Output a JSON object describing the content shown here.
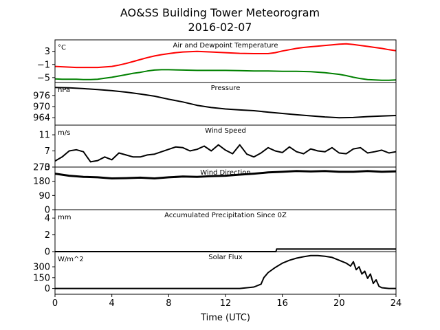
{
  "figure": {
    "title": "AO&SS Building Tower Meteorogram",
    "subtitle": "2016-02-07",
    "xlabel": "Time (UTC)",
    "xlim": [
      0,
      24
    ],
    "xticks": [
      0,
      4,
      8,
      12,
      16,
      20,
      24
    ]
  },
  "chart_data": [
    {
      "type": "line",
      "title": "Air and Dewpoint Temperature",
      "unit": "°C",
      "ylim": [
        -6.5,
        6.5
      ],
      "yticks": [
        3,
        -1,
        -5
      ],
      "ytick_labels": [
        "3",
        "−1",
        "−5"
      ],
      "series": [
        {
          "color": "#ff0000",
          "x": [
            0,
            0.5,
            1,
            1.5,
            2,
            3,
            4,
            4.5,
            5,
            5.5,
            6,
            6.5,
            7,
            7.5,
            8,
            8.5,
            9,
            10,
            11,
            12,
            13,
            14,
            15,
            15.5,
            16,
            16.5,
            17,
            17.5,
            18,
            18.5,
            19,
            19.5,
            20,
            20.5,
            21,
            21.5,
            22,
            22.5,
            23,
            23.5,
            24
          ],
          "values": [
            -1.6,
            -1.7,
            -1.8,
            -1.9,
            -1.9,
            -1.9,
            -1.6,
            -1.2,
            -0.7,
            -0.1,
            0.5,
            1.1,
            1.6,
            2.0,
            2.3,
            2.6,
            2.8,
            3.0,
            2.8,
            2.6,
            2.4,
            2.3,
            2.3,
            2.6,
            3.1,
            3.5,
            3.9,
            4.2,
            4.4,
            4.6,
            4.8,
            5.0,
            5.2,
            5.3,
            5.1,
            4.8,
            4.5,
            4.2,
            3.9,
            3.5,
            3.2
          ]
        },
        {
          "color": "#008000",
          "x": [
            0,
            0.5,
            1,
            1.5,
            2,
            2.5,
            3,
            3.5,
            4,
            4.5,
            5,
            5.5,
            6,
            6.5,
            7,
            7.5,
            8,
            9,
            10,
            11,
            12,
            13,
            14,
            15,
            16,
            17,
            18,
            19,
            20,
            20.5,
            21,
            21.5,
            22,
            22.5,
            23,
            23.5,
            24
          ],
          "values": [
            -5.4,
            -5.5,
            -5.5,
            -5.5,
            -5.6,
            -5.6,
            -5.5,
            -5.2,
            -4.9,
            -4.5,
            -4.1,
            -3.7,
            -3.4,
            -3.0,
            -2.7,
            -2.6,
            -2.6,
            -2.7,
            -2.8,
            -2.8,
            -2.8,
            -2.9,
            -3.0,
            -3.0,
            -3.1,
            -3.1,
            -3.2,
            -3.5,
            -4.0,
            -4.4,
            -4.9,
            -5.3,
            -5.6,
            -5.7,
            -5.8,
            -5.8,
            -5.7
          ]
        }
      ]
    },
    {
      "type": "line",
      "title": "Pressure",
      "unit": "hPa",
      "ylim": [
        960,
        983
      ],
      "yticks": [
        976,
        970,
        964
      ],
      "ytick_labels": [
        "976",
        "970",
        "964"
      ],
      "series": [
        {
          "color": "#000000",
          "x": [
            0,
            1,
            2,
            3,
            4,
            5,
            6,
            7,
            8,
            9,
            10,
            11,
            12,
            13,
            14,
            15,
            16,
            17,
            18,
            19,
            20,
            21,
            22,
            23,
            24
          ],
          "values": [
            980.3,
            980.1,
            979.7,
            979.2,
            978.6,
            977.8,
            976.8,
            975.6,
            974.0,
            972.5,
            970.7,
            969.5,
            968.7,
            968.2,
            967.8,
            967.0,
            966.3,
            965.6,
            965.0,
            964.4,
            964.0,
            964.1,
            964.6,
            964.9,
            965.2
          ]
        }
      ]
    },
    {
      "type": "line",
      "title": "Wind Speed",
      "unit": "m/s",
      "ylim": [
        3,
        13.4
      ],
      "yticks": [
        11,
        7,
        3
      ],
      "ytick_labels": [
        "11",
        "7",
        "3"
      ],
      "series": [
        {
          "color": "#000000",
          "x": [
            0,
            0.5,
            1,
            1.5,
            2,
            2.5,
            3,
            3.5,
            4,
            4.5,
            5,
            5.5,
            6,
            6.5,
            7,
            7.5,
            8,
            8.5,
            9,
            9.5,
            10,
            10.5,
            11,
            11.5,
            12,
            12.5,
            13,
            13.5,
            14,
            14.5,
            15,
            15.5,
            16,
            16.5,
            17,
            17.5,
            18,
            18.5,
            19,
            19.5,
            20,
            20.5,
            21,
            21.5,
            22,
            22.5,
            23,
            23.5,
            24
          ],
          "values": [
            4.5,
            5.5,
            7.0,
            7.3,
            6.8,
            4.3,
            4.6,
            5.5,
            4.8,
            6.5,
            6.0,
            5.5,
            5.5,
            6.0,
            6.2,
            6.8,
            7.4,
            8.0,
            7.8,
            7.0,
            7.4,
            8.2,
            7.0,
            8.5,
            7.2,
            6.3,
            8.5,
            6.2,
            5.5,
            6.5,
            7.8,
            7.0,
            6.6,
            8.0,
            6.8,
            6.3,
            7.5,
            7.0,
            6.8,
            7.8,
            6.5,
            6.3,
            7.5,
            7.8,
            6.5,
            6.8,
            7.2,
            6.5,
            6.8
          ]
        }
      ]
    },
    {
      "type": "line",
      "title": "Wind Direction",
      "unit": "",
      "ylim": [
        0,
        270
      ],
      "yticks": [
        270,
        180,
        90,
        0
      ],
      "ytick_labels": [
        "270",
        "180",
        "90",
        "0"
      ],
      "series": [
        {
          "color": "#000000",
          "x": [
            0,
            1,
            2,
            3,
            4,
            5,
            6,
            7,
            8,
            9,
            10,
            11,
            12,
            13,
            14,
            15,
            16,
            17,
            18,
            19,
            20,
            21,
            22,
            23,
            24
          ],
          "values": [
            228,
            215,
            208,
            205,
            198,
            200,
            203,
            198,
            205,
            210,
            208,
            212,
            215,
            222,
            228,
            236,
            240,
            245,
            242,
            245,
            240,
            240,
            245,
            240,
            243
          ]
        }
      ]
    },
    {
      "type": "line",
      "title": "Accumulated Precipitation Since 0Z",
      "unit": "mm",
      "ylim": [
        0,
        5
      ],
      "yticks": [
        4,
        2,
        0
      ],
      "ytick_labels": [
        "4",
        "2",
        "0"
      ],
      "series": [
        {
          "color": "#000000",
          "x": [
            0,
            15.55,
            15.6,
            24
          ],
          "values": [
            0,
            0,
            0.3,
            0.3
          ]
        }
      ]
    },
    {
      "type": "line",
      "title": "Solar Flux",
      "unit": "W/m^2",
      "ylim": [
        -80,
        510
      ],
      "yticks": [
        300,
        150,
        0
      ],
      "ytick_labels": [
        "300",
        "150",
        "0"
      ],
      "series": [
        {
          "color": "#000000",
          "x": [
            0,
            13,
            14,
            14.5,
            14.7,
            15,
            15.5,
            16,
            16.5,
            17,
            17.5,
            18,
            18.5,
            19,
            19.5,
            20,
            20.5,
            20.8,
            21,
            21.2,
            21.4,
            21.6,
            21.8,
            22,
            22.2,
            22.4,
            22.6,
            22.8,
            23,
            23.5,
            24
          ],
          "values": [
            0,
            0,
            20,
            60,
            150,
            220,
            290,
            350,
            390,
            420,
            440,
            455,
            455,
            445,
            430,
            390,
            350,
            310,
            370,
            260,
            300,
            200,
            240,
            140,
            200,
            70,
            120,
            30,
            10,
            0,
            0
          ]
        }
      ]
    }
  ]
}
